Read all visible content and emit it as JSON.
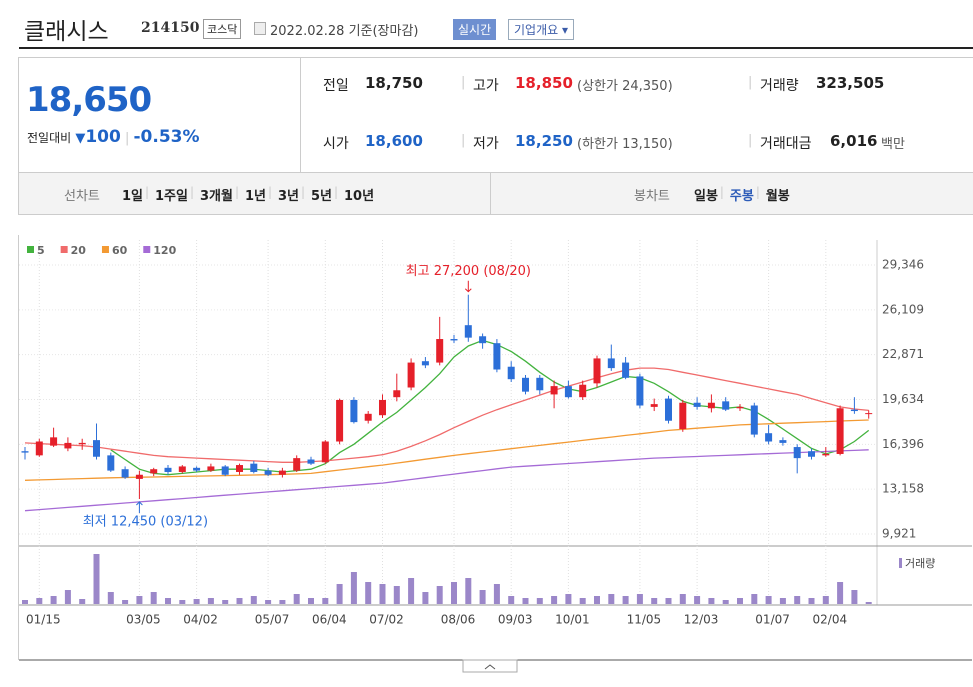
{
  "stock": {
    "name": "클래시스",
    "code": "214150",
    "market": "코스닥",
    "date": "2022.02.28 기준(장마감)",
    "realtime": "실시간",
    "company_info": "기업개요"
  },
  "summary": {
    "price": "18,650",
    "change_label": "전일대비",
    "change": "100",
    "change_pct": "-0.53%",
    "items": [
      {
        "label": "전일",
        "value": "18,750"
      },
      {
        "label": "고가",
        "value": "18,850",
        "note": "(상한가 24,350)"
      },
      {
        "label": "거래량",
        "value": "323,505"
      },
      {
        "label": "시가",
        "value": "18,600"
      },
      {
        "label": "저가",
        "value": "18,250",
        "note": "(하한가 13,150)"
      },
      {
        "label": "거래대금",
        "value": "6,016",
        "note": "백만"
      }
    ]
  },
  "tabs": {
    "line_chart": "선차트",
    "periods": [
      "1일",
      "1주일",
      "3개월",
      "1년",
      "3년",
      "5년",
      "10년"
    ],
    "candle_chart": "봉차트",
    "candle_periods": [
      "일봉",
      "주봉",
      "월봉"
    ]
  },
  "chart_data": {
    "type": "candlestick",
    "categories": [
      null,
      "01/15",
      null,
      null,
      null,
      null,
      null,
      null,
      "03/05",
      null,
      null,
      null,
      "04/02",
      null,
      null,
      null,
      null,
      "05/07",
      null,
      null,
      null,
      "06/04",
      null,
      null,
      null,
      "07/02",
      null,
      null,
      null,
      null,
      "08/06",
      null,
      null,
      null,
      "09/03",
      null,
      null,
      null,
      "10/01",
      null,
      null,
      null,
      null,
      "11/05",
      null,
      null,
      null,
      "12/03",
      null,
      null,
      null,
      null,
      "01/07",
      null,
      null,
      null,
      "02/04",
      null,
      null,
      null
    ],
    "open": [
      15900,
      15600,
      16300,
      16100,
      16400,
      16700,
      15600,
      14600,
      13900,
      14300,
      14700,
      14400,
      14700,
      14500,
      14800,
      14400,
      15000,
      14500,
      14200,
      14500,
      15300,
      15100,
      16600,
      19600,
      18100,
      18500,
      19800,
      20500,
      22400,
      22300,
      24000,
      25000,
      24200,
      23700,
      22000,
      21200,
      21200,
      20000,
      20600,
      19800,
      20800,
      22600,
      22300,
      21300,
      19100,
      19700,
      17500,
      19400,
      19000,
      19500,
      19000,
      19200,
      17200,
      16700,
      16200,
      15900,
      15600,
      15700,
      18900,
      18600
    ],
    "high": [
      16200,
      16800,
      17600,
      16900,
      16800,
      17900,
      15800,
      14800,
      14500,
      14700,
      14900,
      14900,
      14800,
      15000,
      14900,
      15000,
      15200,
      14700,
      14700,
      15600,
      15500,
      16700,
      19700,
      19800,
      18800,
      20000,
      21500,
      22600,
      22700,
      25600,
      24300,
      27200,
      24400,
      24000,
      22400,
      21400,
      21400,
      21000,
      21000,
      21000,
      22800,
      23600,
      22700,
      21500,
      19700,
      19900,
      19600,
      19800,
      20000,
      19800,
      19300,
      19400,
      17800,
      16900,
      16400,
      16100,
      16200,
      19200,
      19800,
      18850
    ],
    "low": [
      15300,
      15500,
      16200,
      15900,
      16000,
      15300,
      14400,
      13900,
      12450,
      14100,
      14200,
      14300,
      14400,
      14400,
      14100,
      14200,
      14300,
      14100,
      14000,
      14400,
      14900,
      15000,
      16400,
      17900,
      17900,
      18300,
      19500,
      20300,
      21900,
      22100,
      23700,
      23800,
      23300,
      21600,
      20900,
      20000,
      20000,
      19000,
      19700,
      19600,
      20500,
      21700,
      21100,
      19000,
      18800,
      17900,
      17300,
      18900,
      18700,
      18800,
      18800,
      16900,
      16400,
      16300,
      14300,
      15300,
      15500,
      15600,
      18600,
      18250
    ],
    "close": [
      15800,
      16600,
      16900,
      16500,
      16500,
      15500,
      14500,
      14000,
      14200,
      14600,
      14400,
      14800,
      14500,
      14800,
      14200,
      14900,
      14400,
      14200,
      14500,
      15400,
      15000,
      16600,
      19600,
      18000,
      18600,
      19600,
      20300,
      22300,
      22100,
      24000,
      23900,
      24100,
      23700,
      21800,
      21100,
      20200,
      20300,
      20600,
      19800,
      20700,
      22600,
      21900,
      21200,
      19200,
      19300,
      18100,
      19400,
      19100,
      19400,
      18900,
      19100,
      17100,
      16600,
      16500,
      15400,
      15500,
      15700,
      19000,
      18800,
      18650
    ],
    "up_color": "#e5202a",
    "down_color": "#2c6fd8",
    "series": [
      {
        "name": "5",
        "color": "#43b33e",
        "values": [
          null,
          null,
          null,
          null,
          null,
          null,
          16000,
          15300,
          14600,
          14300,
          14200,
          14300,
          14400,
          14500,
          14600,
          14600,
          14600,
          14500,
          14400,
          14500,
          14600,
          15000,
          15800,
          16400,
          17200,
          18000,
          18700,
          19600,
          20500,
          21500,
          22700,
          23500,
          23900,
          23600,
          23100,
          22400,
          21600,
          20900,
          20400,
          20200,
          20500,
          20900,
          21300,
          21200,
          20800,
          20200,
          19500,
          19200,
          19100,
          19000,
          19100,
          18800,
          18200,
          17500,
          16800,
          16100,
          15700,
          16000,
          16600,
          17400
        ]
      },
      {
        "name": "20",
        "color": "#f06b6b",
        "values": [
          16500,
          16450,
          16400,
          16350,
          16300,
          16200,
          16050,
          15900,
          15750,
          15600,
          15500,
          15450,
          15400,
          15350,
          15300,
          15250,
          15200,
          15150,
          15100,
          15100,
          15150,
          15200,
          15300,
          15400,
          15500,
          15650,
          15900,
          16250,
          16650,
          17100,
          17600,
          18050,
          18500,
          18900,
          19250,
          19600,
          19950,
          20300,
          20600,
          20900,
          21200,
          21500,
          21750,
          21900,
          21900,
          21800,
          21600,
          21400,
          21200,
          21000,
          20800,
          20600,
          20400,
          20200,
          20000,
          19700,
          19400,
          19100,
          18950,
          18850
        ]
      },
      {
        "name": "60",
        "color": "#f39a33",
        "values": [
          13800,
          13830,
          13860,
          13890,
          13920,
          13950,
          13980,
          14000,
          14020,
          14040,
          14060,
          14080,
          14100,
          14120,
          14140,
          14160,
          14180,
          14200,
          14230,
          14260,
          14300,
          14420,
          14540,
          14660,
          14780,
          14900,
          15040,
          15180,
          15320,
          15460,
          15600,
          15720,
          15840,
          15960,
          16080,
          16200,
          16320,
          16440,
          16560,
          16680,
          16800,
          16920,
          17040,
          17160,
          17280,
          17400,
          17480,
          17560,
          17640,
          17720,
          17800,
          17840,
          17880,
          17920,
          17960,
          18000,
          18040,
          18080,
          18120,
          18150
        ]
      },
      {
        "name": "120",
        "color": "#a56bd6",
        "values": [
          11600,
          11680,
          11760,
          11840,
          11920,
          12000,
          12080,
          12160,
          12240,
          12320,
          12400,
          12480,
          12560,
          12640,
          12720,
          12800,
          12880,
          12960,
          13040,
          13120,
          13200,
          13280,
          13360,
          13440,
          13520,
          13600,
          13730,
          13860,
          13990,
          14120,
          14250,
          14380,
          14500,
          14630,
          14750,
          14820,
          14880,
          14950,
          15010,
          15080,
          15140,
          15210,
          15270,
          15340,
          15400,
          15440,
          15480,
          15520,
          15560,
          15600,
          15640,
          15680,
          15720,
          15760,
          15800,
          15840,
          15880,
          15920,
          15960,
          16000
        ]
      }
    ],
    "volume": {
      "name": "거래량",
      "color": "#9b87c9",
      "values": [
        4,
        6,
        8,
        14,
        5,
        50,
        12,
        4,
        8,
        12,
        6,
        4,
        5,
        6,
        4,
        6,
        8,
        4,
        4,
        10,
        6,
        6,
        20,
        32,
        22,
        20,
        18,
        26,
        12,
        18,
        22,
        26,
        14,
        20,
        8,
        6,
        6,
        8,
        10,
        6,
        8,
        10,
        8,
        10,
        6,
        6,
        10,
        8,
        6,
        4,
        6,
        10,
        8,
        6,
        8,
        6,
        8,
        22,
        14,
        2
      ],
      "lim": [
        0,
        55
      ]
    },
    "ylim": [
      9921,
      29346
    ],
    "yticks": [
      {
        "value": 29346,
        "label": "29,346"
      },
      {
        "value": 26109,
        "label": "26,109"
      },
      {
        "value": 22871,
        "label": "22,871"
      },
      {
        "value": 19634,
        "label": "19,634"
      },
      {
        "value": 16396,
        "label": "16,396"
      },
      {
        "value": 13158,
        "label": "13,158"
      },
      {
        "value": 9921,
        "label": "9,921"
      }
    ],
    "annotations": [
      {
        "text": "최고 27,200 (08/20)",
        "color": "#e5202a"
      },
      {
        "text": "최저 12,450 (03/12)",
        "color": "#2c6fd8"
      }
    ],
    "grid": true
  }
}
